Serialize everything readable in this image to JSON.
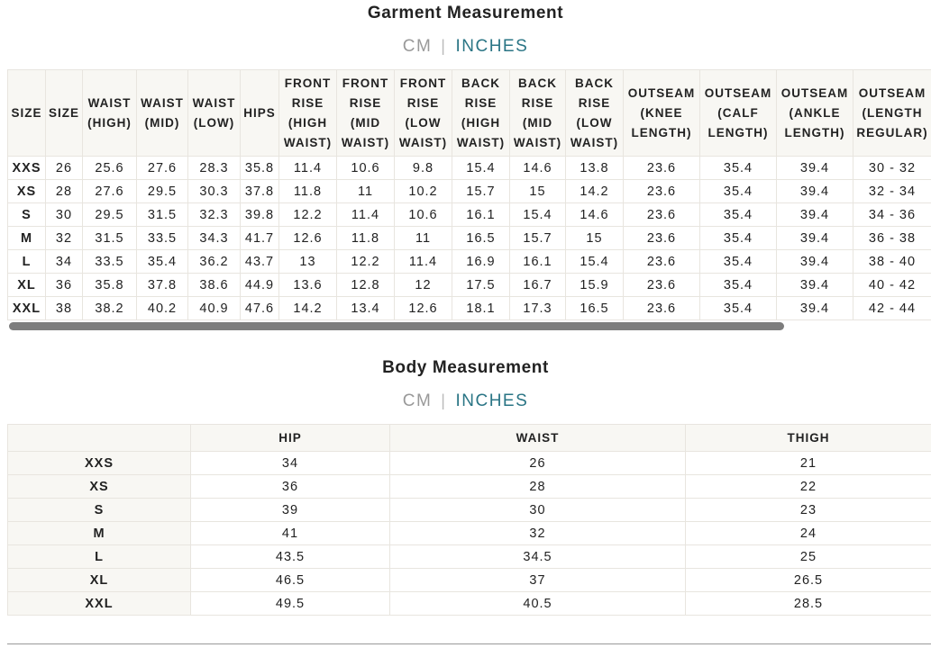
{
  "garment": {
    "title": "Garment Measurement",
    "units": [
      "CM",
      "INCHES"
    ],
    "headers": [
      "SIZE",
      "SIZE",
      "WAIST (HIGH)",
      "WAIST (MID)",
      "WAIST (LOW)",
      "HIPS",
      "FRONT RISE (HIGH WAIST)",
      "FRONT RISE (MID WAIST)",
      "FRONT RISE (LOW WAIST)",
      "BACK RISE (HIGH WAIST)",
      "BACK RISE (MID WAIST)",
      "BACK RISE (LOW WAIST)",
      "OUTSEAM (KNEE LENGTH)",
      "OUTSEAM (CALF LENGTH)",
      "OUTSEAM (ANKLE LENGTH)",
      "OUTSEAM (LENGTH REGULAR)"
    ],
    "rows": [
      [
        "XXS",
        "26",
        "25.6",
        "27.6",
        "28.3",
        "35.8",
        "11.4",
        "10.6",
        "9.8",
        "15.4",
        "14.6",
        "13.8",
        "23.6",
        "35.4",
        "39.4",
        "30 - 32"
      ],
      [
        "XS",
        "28",
        "27.6",
        "29.5",
        "30.3",
        "37.8",
        "11.8",
        "11",
        "10.2",
        "15.7",
        "15",
        "14.2",
        "23.6",
        "35.4",
        "39.4",
        "32 - 34"
      ],
      [
        "S",
        "30",
        "29.5",
        "31.5",
        "32.3",
        "39.8",
        "12.2",
        "11.4",
        "10.6",
        "16.1",
        "15.4",
        "14.6",
        "23.6",
        "35.4",
        "39.4",
        "34 - 36"
      ],
      [
        "M",
        "32",
        "31.5",
        "33.5",
        "34.3",
        "41.7",
        "12.6",
        "11.8",
        "11",
        "16.5",
        "15.7",
        "15",
        "23.6",
        "35.4",
        "39.4",
        "36 - 38"
      ],
      [
        "L",
        "34",
        "33.5",
        "35.4",
        "36.2",
        "43.7",
        "13",
        "12.2",
        "11.4",
        "16.9",
        "16.1",
        "15.4",
        "23.6",
        "35.4",
        "39.4",
        "38 - 40"
      ],
      [
        "XL",
        "36",
        "35.8",
        "37.8",
        "38.6",
        "44.9",
        "13.6",
        "12.8",
        "12",
        "17.5",
        "16.7",
        "15.9",
        "23.6",
        "35.4",
        "39.4",
        "40 - 42"
      ],
      [
        "XXL",
        "38",
        "38.2",
        "40.2",
        "40.9",
        "47.6",
        "14.2",
        "13.4",
        "12.6",
        "18.1",
        "17.3",
        "16.5",
        "23.6",
        "35.4",
        "39.4",
        "42 - 44"
      ]
    ]
  },
  "body": {
    "title": "Body Measurement",
    "units": [
      "CM",
      "INCHES"
    ],
    "headers": [
      "HIP",
      "WAIST",
      "THIGH"
    ],
    "rows": [
      [
        "XXS",
        "34",
        "26",
        "21"
      ],
      [
        "XS",
        "36",
        "28",
        "22"
      ],
      [
        "S",
        "39",
        "30",
        "23"
      ],
      [
        "M",
        "41",
        "32",
        "24"
      ],
      [
        "L",
        "43.5",
        "34.5",
        "25"
      ],
      [
        "XL",
        "46.5",
        "37",
        "26.5"
      ],
      [
        "XXL",
        "49.5",
        "40.5",
        "28.5"
      ]
    ]
  }
}
